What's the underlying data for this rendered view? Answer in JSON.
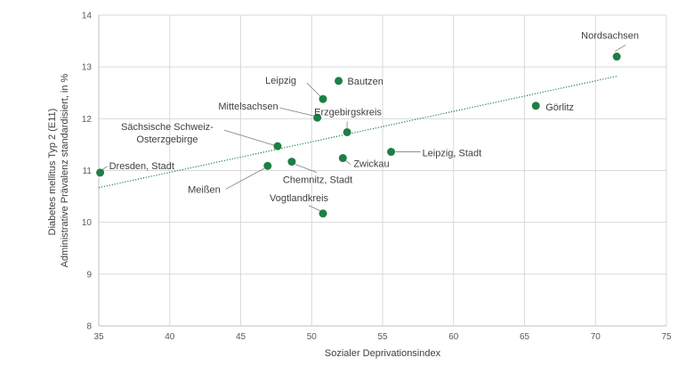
{
  "chart_data": {
    "type": "scatter",
    "xlabel": "Sozialer Deprivationsindex",
    "ylabel": [
      "Diabetes mellitus Typ 2 (E11)",
      "Administrative Prävalenz standardisiert, in %"
    ],
    "xlim": [
      35,
      75
    ],
    "ylim": [
      8,
      14
    ],
    "xticks": [
      35,
      40,
      45,
      50,
      55,
      60,
      65,
      70,
      75
    ],
    "yticks": [
      8,
      9,
      10,
      11,
      12,
      13,
      14
    ],
    "grid": "horizontal and vertical",
    "marker_color": "#1e7f46",
    "trendline": {
      "style": "dotted",
      "color": "#1e7f46",
      "x": [
        35,
        71.5
      ],
      "y": [
        10.67,
        12.82
      ]
    },
    "points": [
      {
        "label": [
          "Nordsachsen"
        ],
        "x": 71.5,
        "y": 13.2
      },
      {
        "label": [
          "Bautzen"
        ],
        "x": 51.9,
        "y": 12.73
      },
      {
        "label": [
          "Leipzig"
        ],
        "x": 50.8,
        "y": 12.38
      },
      {
        "label": [
          "Mittelsachsen"
        ],
        "x": 50.4,
        "y": 12.02
      },
      {
        "label": [
          "Erzgebirgskreis"
        ],
        "x": 52.5,
        "y": 11.74
      },
      {
        "label": [
          "Görlitz"
        ],
        "x": 65.8,
        "y": 12.25
      },
      {
        "label": [
          "Sächsische Schweiz-",
          "Osterzgebirge"
        ],
        "x": 47.6,
        "y": 11.47
      },
      {
        "label": [
          "Leipzig, Stadt"
        ],
        "x": 55.6,
        "y": 11.36
      },
      {
        "label": [
          "Zwickau"
        ],
        "x": 52.2,
        "y": 11.24
      },
      {
        "label": [
          "Chemnitz, Stadt"
        ],
        "x": 48.6,
        "y": 11.17
      },
      {
        "label": [
          "Meißen"
        ],
        "x": 46.9,
        "y": 11.09
      },
      {
        "label": [
          "Dresden, Stadt"
        ],
        "x": 35.1,
        "y": 10.96
      },
      {
        "label": [
          "Vogtlandkreis"
        ],
        "x": 50.8,
        "y": 10.17
      }
    ]
  }
}
